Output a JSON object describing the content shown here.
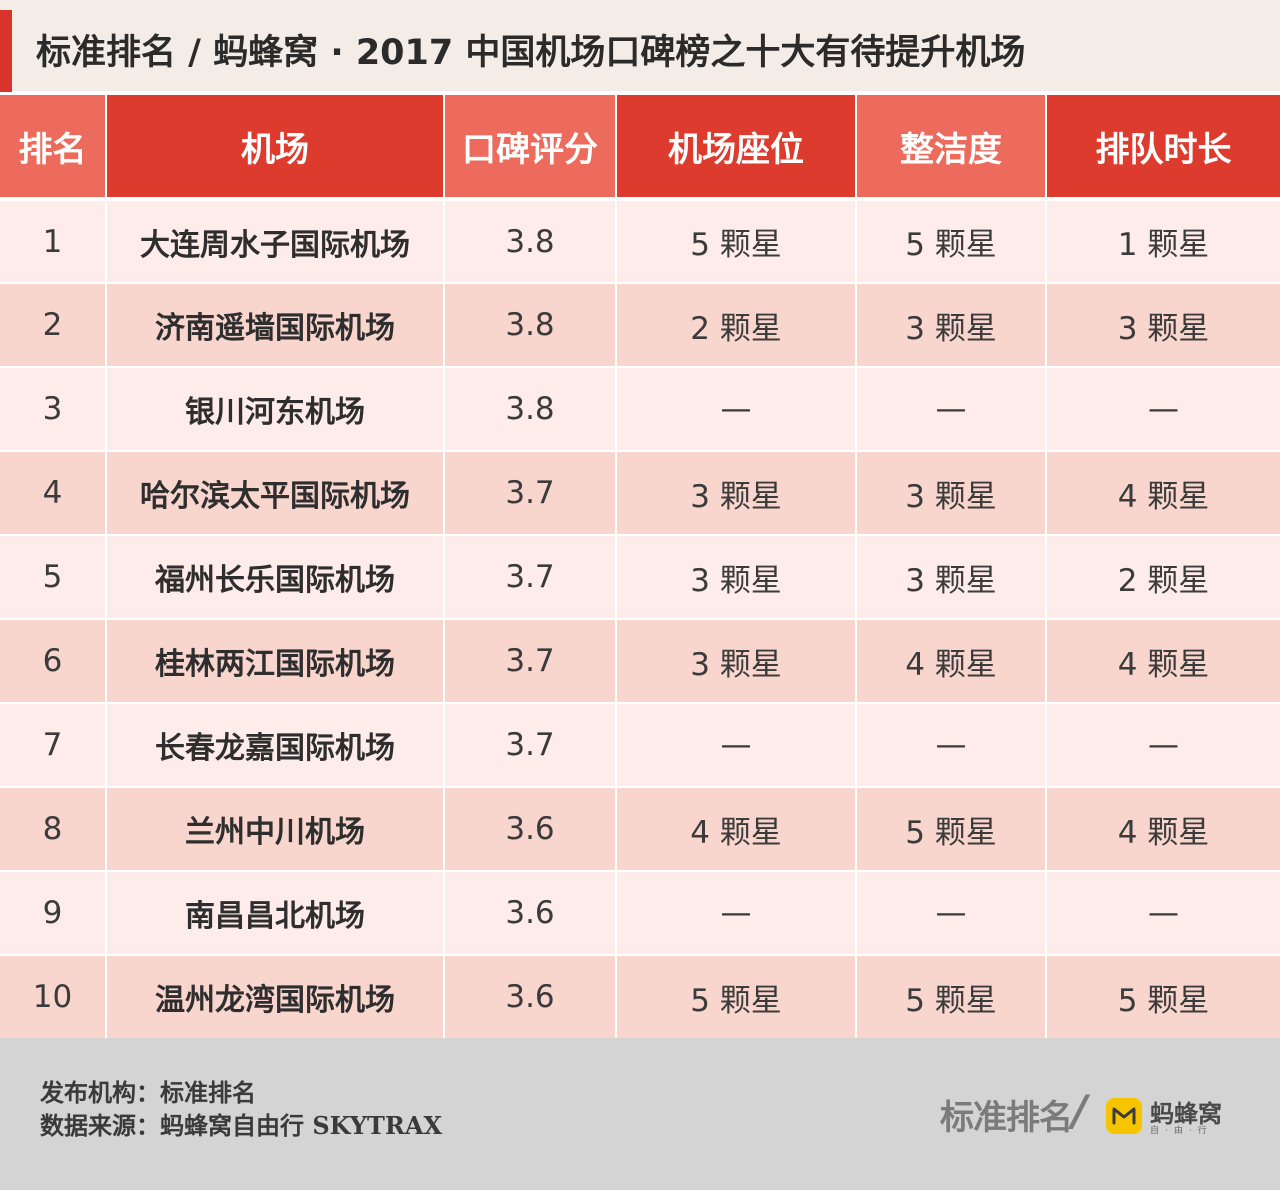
{
  "title": "标准排名 / 蚂蜂窝 · 2017 中国机场口碑榜之十大有待提升机场",
  "columns": [
    "排名",
    "机场",
    "口碑评分",
    "机场座位",
    "整洁度",
    "排队时长"
  ],
  "rows": [
    {
      "rank": "1",
      "name": "大连周水子国际机场",
      "score": "3.8",
      "seats": "5 颗星",
      "clean": "5 颗星",
      "queue": "1 颗星"
    },
    {
      "rank": "2",
      "name": "济南遥墙国际机场",
      "score": "3.8",
      "seats": "2 颗星",
      "clean": "3 颗星",
      "queue": "3 颗星"
    },
    {
      "rank": "3",
      "name": "银川河东机场",
      "score": "3.8",
      "seats": "—",
      "clean": "—",
      "queue": "—"
    },
    {
      "rank": "4",
      "name": "哈尔滨太平国际机场",
      "score": "3.7",
      "seats": "3 颗星",
      "clean": "3 颗星",
      "queue": "4 颗星"
    },
    {
      "rank": "5",
      "name": "福州长乐国际机场",
      "score": "3.7",
      "seats": "3 颗星",
      "clean": "3 颗星",
      "queue": "2 颗星"
    },
    {
      "rank": "6",
      "name": "桂林两江国际机场",
      "score": "3.7",
      "seats": "3 颗星",
      "clean": "4 颗星",
      "queue": "4 颗星"
    },
    {
      "rank": "7",
      "name": "长春龙嘉国际机场",
      "score": "3.7",
      "seats": "—",
      "clean": "—",
      "queue": "—"
    },
    {
      "rank": "8",
      "name": "兰州中川机场",
      "score": "3.6",
      "seats": "4 颗星",
      "clean": "5 颗星",
      "queue": "4 颗星"
    },
    {
      "rank": "9",
      "name": "南昌昌北机场",
      "score": "3.6",
      "seats": "—",
      "clean": "—",
      "queue": "—"
    },
    {
      "rank": "10",
      "name": "温州龙湾国际机场",
      "score": "3.6",
      "seats": "5 颗星",
      "clean": "5 颗星",
      "queue": "5 颗星"
    }
  ],
  "footer": {
    "publisher": "发布机构：标准排名",
    "source": "数据来源：蚂蜂窝自由行 SKYTRAX",
    "logo_left": "标准排名",
    "logo_slash": "/",
    "logo_right": "蚂蜂窝",
    "logo_right_sub": "自·由·行"
  },
  "colors": {
    "header_dark": "#dc3b2e",
    "header_light": "#ec6b5c",
    "row_odd": "#fdecea",
    "row_even": "#f8d5cd",
    "accent": "#d9342b",
    "logo_badge": "#f7c500"
  }
}
